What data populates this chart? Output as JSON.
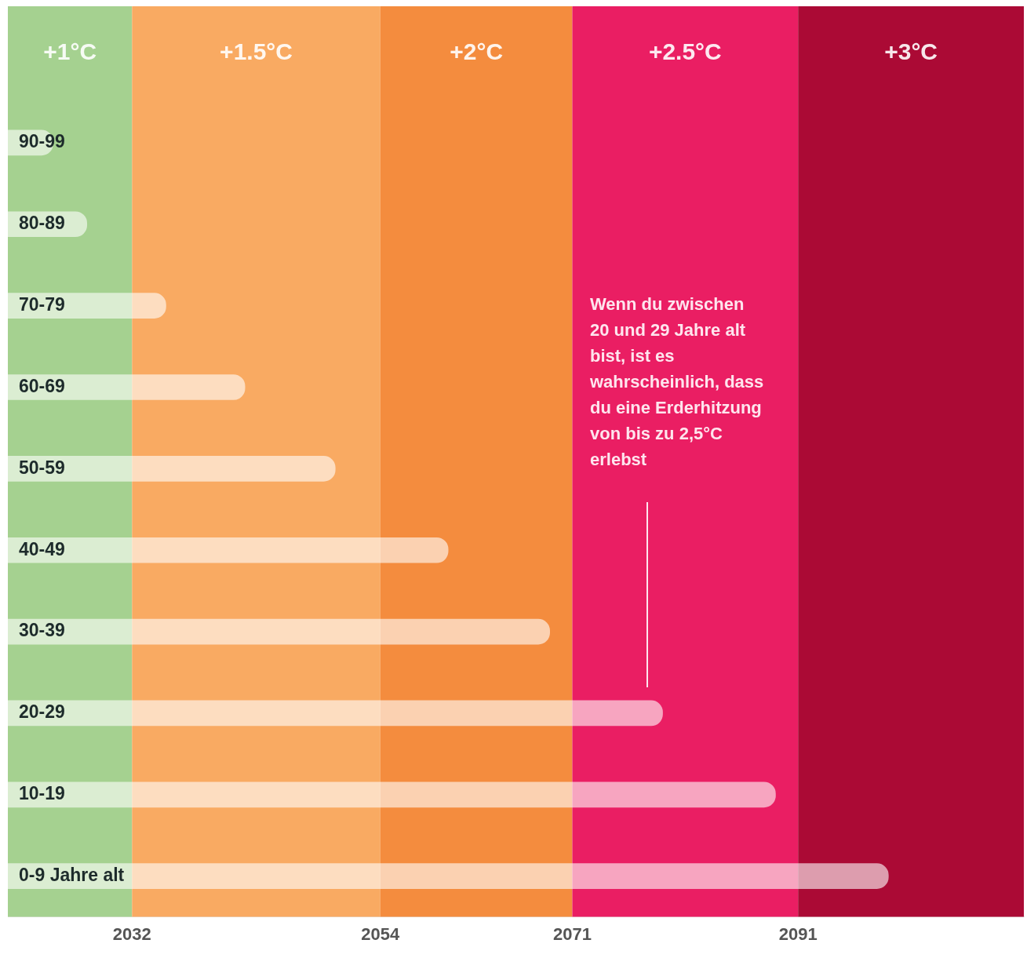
{
  "chart_data": {
    "type": "bar",
    "orientation": "horizontal",
    "categories": [
      "90-99",
      "80-89",
      "70-79",
      "60-69",
      "50-59",
      "40-49",
      "30-39",
      "20-29",
      "10-19",
      "0-9 Jahre alt"
    ],
    "values": [
      2025,
      2028,
      2035,
      2042,
      2050,
      2060,
      2069,
      2079,
      2089,
      2099
    ],
    "color": "#ffffff",
    "xlim": [
      2021,
      2111
    ],
    "xticks": [
      2032,
      2054,
      2071,
      2091
    ],
    "bands": [
      {
        "axis": "x",
        "from": 2021,
        "to": 2032,
        "label": "+1°C",
        "color": "#a5d190"
      },
      {
        "axis": "x",
        "from": 2032,
        "to": 2054,
        "label": "+1.5°C",
        "color": "#f9aa62"
      },
      {
        "axis": "x",
        "from": 2054,
        "to": 2071,
        "label": "+2°C",
        "color": "#f48c3e"
      },
      {
        "axis": "x",
        "from": 2071,
        "to": 2091,
        "label": "+2.5°C",
        "color": "#ea1e63"
      },
      {
        "axis": "x",
        "from": 2091,
        "to": 2111,
        "label": "+3°C",
        "color": "#ab0a35"
      }
    ],
    "annotations": [
      "Wenn du zwischen 20 und 29 Jahre alt bist, ist es wahrscheinlich, dass du eine Erderhitzung von bis zu 2,5°C erlebst"
    ],
    "grid": false,
    "legend": false
  }
}
